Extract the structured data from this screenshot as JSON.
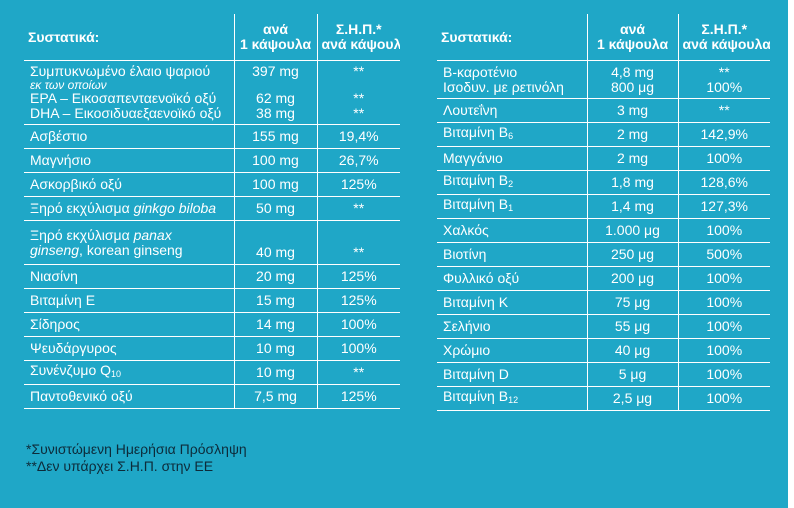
{
  "headers": {
    "ingredients": "Συστατικά:",
    "per_capsule_line1": "ανά",
    "per_capsule_line2": "1 κάψουλα",
    "rda_line1": "Σ.Η.Π.*",
    "rda_line2": "ανά κάψουλα"
  },
  "left_rows": [
    {
      "name": "Συμπυκνωμένο έλαιο ψαριού",
      "note": "εκ των οποίων",
      "sub_items": [
        {
          "name": "EPA – Εικοσαπενταενοϊκό οξύ",
          "amount": "62 mg",
          "dv": "**"
        },
        {
          "name": "DHA – Εικοσιδυαεξαενοϊκό οξύ",
          "amount": "38 mg",
          "dv": "**"
        }
      ],
      "amount": "397 mg",
      "dv": "**"
    },
    {
      "name": "Ασβέστιο",
      "amount": "155 mg",
      "dv": "19,4%"
    },
    {
      "name": "Μαγνήσιο",
      "amount": "100 mg",
      "dv": "26,7%"
    },
    {
      "name": "Ασκορβικό οξύ",
      "amount": "100 mg",
      "dv": "125%"
    },
    {
      "name_plain": "Ξηρό εκχύλισμα ",
      "name_italic": "ginkgo biloba",
      "amount": "50 mg",
      "dv": "**"
    },
    {
      "name_plain": "Ξηρό εκχύλισμα ",
      "name_italic": "panax",
      "name_line2_italic": "ginseng",
      "name_line2_plain": ", korean ginseng",
      "amount": "40 mg",
      "dv": "**"
    },
    {
      "name": "Νιασίνη",
      "amount": "20 mg",
      "dv": "125%"
    },
    {
      "name": "Βιταμίνη Ε",
      "amount": "15 mg",
      "dv": "125%"
    },
    {
      "name": "Σίδηρος",
      "amount": "14 mg",
      "dv": "100%"
    },
    {
      "name": "Ψευδάργυρος",
      "amount": "10 mg",
      "dv": "100%"
    },
    {
      "name": "Συνένζυμο Q",
      "sub": "10",
      "amount": "10 mg",
      "dv": "**"
    },
    {
      "name": "Παντοθενικό οξύ",
      "amount": "7,5 mg",
      "dv": "125%"
    }
  ],
  "right_rows": [
    {
      "name": "Β-καροτένιο",
      "name_line2": "Ισοδυν. με ρετινόλη",
      "amount": "4,8 mg",
      "amount_line2": "800 μg",
      "dv": "**",
      "dv_line2": "100%"
    },
    {
      "name": "Λουτεΐνη",
      "amount": "3 mg",
      "dv": "**"
    },
    {
      "name": "Βιταμίνη B",
      "sub": "6",
      "amount": "2 mg",
      "dv": "142,9%"
    },
    {
      "name": "Μαγγάνιο",
      "amount": "2 mg",
      "dv": "100%"
    },
    {
      "name": "Βιταμίνη B",
      "sub": "2",
      "amount": "1,8 mg",
      "dv": "128,6%"
    },
    {
      "name": "Βιταμίνη B",
      "sub": "1",
      "amount": "1,4 mg",
      "dv": "127,3%"
    },
    {
      "name": "Χαλκός",
      "amount": "1.000 μg",
      "dv": "100%"
    },
    {
      "name": "Βιοτίνη",
      "amount": "250 μg",
      "dv": "500%"
    },
    {
      "name": "Φυλλικό οξύ",
      "amount": "200 μg",
      "dv": "100%"
    },
    {
      "name": "Βιταμίνη Κ",
      "amount": "75 μg",
      "dv": "100%"
    },
    {
      "name": "Σελήνιο",
      "amount": "55 μg",
      "dv": "100%"
    },
    {
      "name": "Χρώμιο",
      "amount": "40 μg",
      "dv": "100%"
    },
    {
      "name": "Βιταμίνη D",
      "amount": "5 μg",
      "dv": "100%"
    },
    {
      "name": "Βιταμίνη B",
      "sub": "12",
      "amount": "2,5 μg",
      "dv": "100%"
    }
  ],
  "footnotes": {
    "rda": "*Συνιστώμενη Ημερήσια Πρόσληψη",
    "no_rda": "**Δεν υπάρχει Σ.Η.Π. στην ΕΕ"
  },
  "colors": {
    "background": "#1fa7c7",
    "text": "#ffffff",
    "footnote_text": "#0d2b3a"
  }
}
